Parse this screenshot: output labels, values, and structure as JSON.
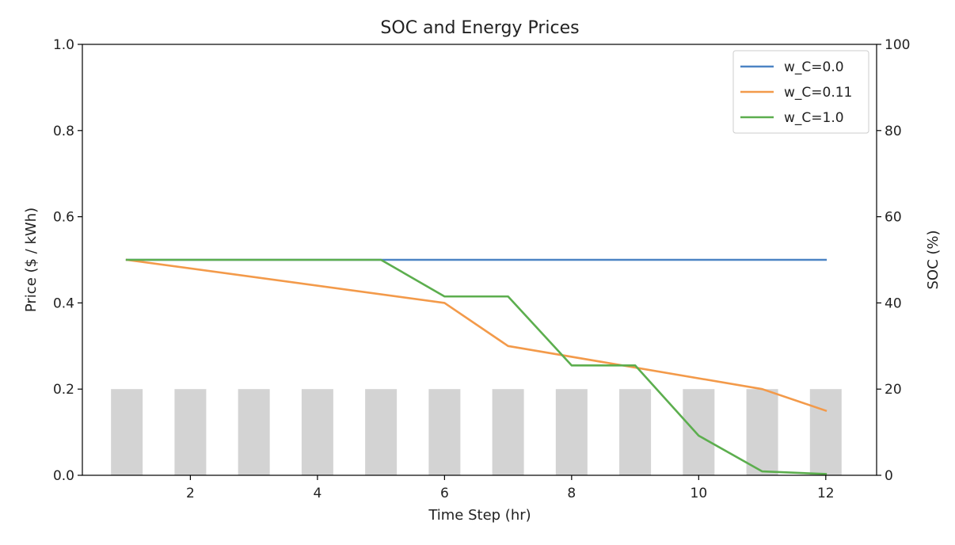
{
  "chart_data": {
    "type": "bar+line",
    "title": "SOC and Energy Prices",
    "xlabel": "Time Step (hr)",
    "ylabel_left": "Price ($ / kWh)",
    "ylabel_right": "SOC (%)",
    "xlim": [
      0.3,
      12.8
    ],
    "ylim_left": [
      0,
      1.0
    ],
    "ylim_right": [
      0,
      100
    ],
    "x_ticks": [
      2,
      4,
      6,
      8,
      10,
      12
    ],
    "y_left_ticks": [
      "0.0",
      "0.2",
      "0.4",
      "0.6",
      "0.8",
      "1.0"
    ],
    "y_right_ticks": [
      "0",
      "20",
      "40",
      "60",
      "80",
      "100"
    ],
    "grid": false,
    "legend_position": "top-right",
    "bars": {
      "axis": "left",
      "color": "#d3d3d3",
      "x": [
        1,
        2,
        3,
        4,
        5,
        6,
        7,
        8,
        9,
        10,
        11,
        12
      ],
      "values": [
        0.2,
        0.2,
        0.2,
        0.2,
        0.2,
        0.2,
        0.2,
        0.2,
        0.2,
        0.2,
        0.2,
        0.2
      ]
    },
    "series": [
      {
        "name": "w_C=0.0",
        "axis": "right",
        "color": "#4c84c4",
        "x": [
          1,
          2,
          3,
          4,
          5,
          6,
          7,
          8,
          9,
          10,
          11,
          12
        ],
        "values": [
          50,
          50,
          50,
          50,
          50,
          50,
          50,
          50,
          50,
          50,
          50,
          50
        ]
      },
      {
        "name": "w_C=0.11",
        "axis": "right",
        "color": "#f39a4a",
        "x": [
          1,
          6,
          7,
          11,
          12
        ],
        "values": [
          50,
          40,
          30,
          20,
          15
        ]
      },
      {
        "name": "w_C=1.0",
        "axis": "right",
        "color": "#5cae4e",
        "x": [
          1,
          5,
          6,
          7,
          8,
          9,
          10,
          11,
          12
        ],
        "values": [
          50,
          50,
          41.5,
          41.5,
          25.5,
          25.5,
          9.2,
          0.9,
          0.3
        ]
      }
    ]
  }
}
